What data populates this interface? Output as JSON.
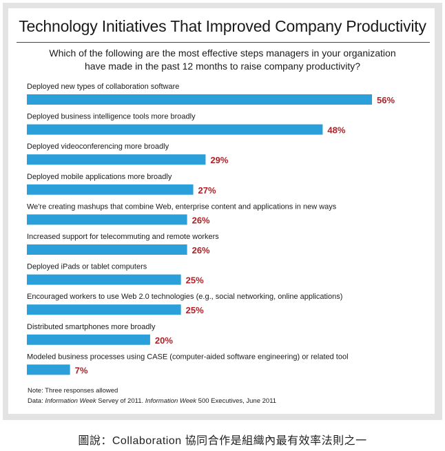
{
  "title": "Technology Initiatives That Improved Company Productivity",
  "subtitle_lines": [
    "Which of the following are the most effective steps managers in your organization",
    "have made in the past 12 months to raise company productivity?"
  ],
  "note": "Note: Three responses allowed",
  "source": {
    "prefix": "Data: ",
    "pub1": "Information Week",
    "mid": " Servey of 2011. ",
    "pub2": "Information Week",
    "suffix": " 500 Executives, June 2011"
  },
  "caption": "圖說：Collaboration 協同合作是組織內最有效率法則之一",
  "chart_data": {
    "type": "bar",
    "orientation": "horizontal",
    "categories": [
      "Deployed new types of collaboration software",
      "Deployed business intelligence tools more broadly",
      "Deployed videoconferencing more broadly",
      "Deployed mobile applications more broadly",
      "We're creating mashups that combine Web, enterprise content and applications in new ways",
      "Increased support for telecommuting and remote workers",
      "Deployed iPads or tablet computers",
      "Encouraged workers to use Web 2.0 technologies (e.g., social networking, online applications)",
      "Distributed smartphones more broadly",
      "Modeled business processes using CASE (computer-aided software engineering) or related tool"
    ],
    "values": [
      56,
      48,
      29,
      27,
      26,
      26,
      25,
      25,
      20,
      7
    ],
    "value_labels": [
      "56%",
      "48%",
      "29%",
      "27%",
      "26%",
      "26%",
      "25%",
      "25%",
      "20%",
      "7%"
    ],
    "bar_color": "#2b9fda",
    "value_label_color": "#b02027",
    "xlim": [
      0,
      56
    ]
  }
}
